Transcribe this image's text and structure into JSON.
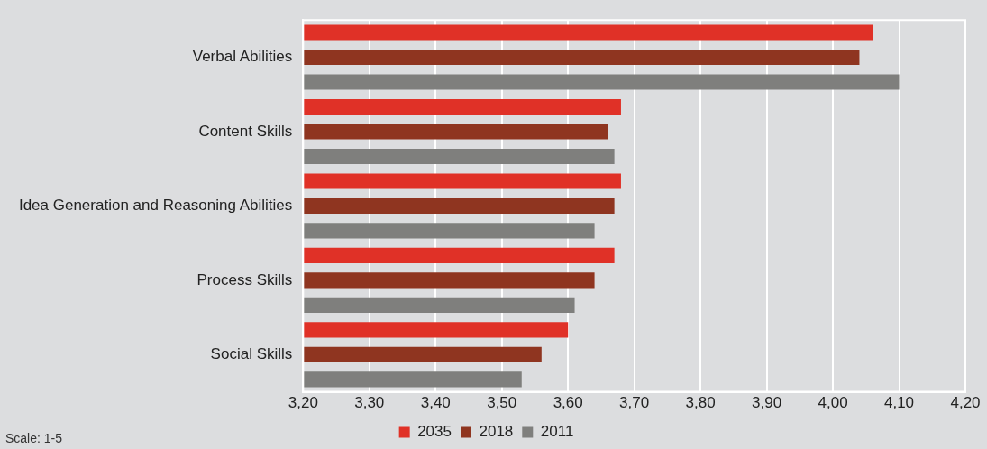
{
  "chart_data": {
    "type": "bar",
    "orientation": "horizontal",
    "categories": [
      "Verbal Abilities",
      "Content Skills",
      "Idea Generation and Reasoning Abilities",
      "Process Skills",
      "Social Skills"
    ],
    "series": [
      {
        "name": "2035",
        "color": "#e03127",
        "values": [
          4.06,
          3.68,
          3.68,
          3.67,
          3.6
        ]
      },
      {
        "name": "2018",
        "color": "#8f3520",
        "values": [
          4.04,
          3.66,
          3.67,
          3.64,
          3.56
        ]
      },
      {
        "name": "2011",
        "color": "#7f7f7d",
        "values": [
          4.1,
          3.67,
          3.64,
          3.61,
          3.53
        ]
      }
    ],
    "xlim": [
      3.2,
      4.2
    ],
    "xticks": [
      {
        "value": 3.2,
        "label": "3,20"
      },
      {
        "value": 3.3,
        "label": "3,30"
      },
      {
        "value": 3.4,
        "label": "3,40"
      },
      {
        "value": 3.5,
        "label": "3,50"
      },
      {
        "value": 3.6,
        "label": "3,60"
      },
      {
        "value": 3.7,
        "label": "3,70"
      },
      {
        "value": 3.8,
        "label": "3,80"
      },
      {
        "value": 3.9,
        "label": "3,90"
      },
      {
        "value": 4.0,
        "label": "4,00"
      },
      {
        "value": 4.1,
        "label": "4,10"
      },
      {
        "value": 4.2,
        "label": "4,20"
      }
    ],
    "grid": "x",
    "legend": "bottom",
    "annotations": [
      "Scale: 1-5"
    ]
  }
}
